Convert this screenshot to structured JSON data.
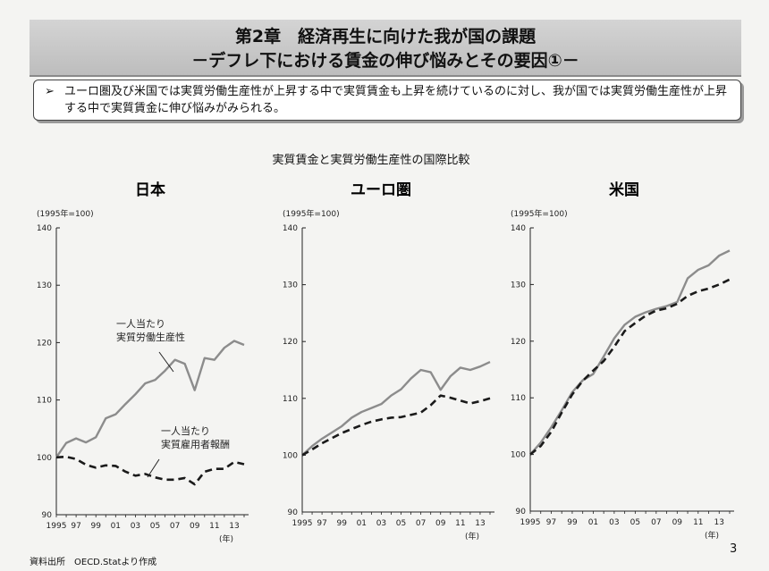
{
  "header": {
    "title_line1": "第2章　経済再生に向けた我が国の課題",
    "title_line2": "－デフレ下における賃金の伸び悩みとその要因①－"
  },
  "summary": {
    "bullet": "➢",
    "text": "ユーロ圏及び米国では実質労働生産性が上昇する中で実質賃金も上昇を続けているのに対し、我が国では実質労働生産性が上昇する中で実質賃金に伸び悩みがみられる。"
  },
  "chart_title": "実質賃金と実質労働生産性の国際比較",
  "chart_data": [
    {
      "type": "line",
      "title": "日本",
      "unit_label": "(1995年=100)",
      "xlabel": "(年)",
      "x": [
        1995,
        1996,
        1997,
        1998,
        1999,
        2000,
        2001,
        2002,
        2003,
        2004,
        2005,
        2006,
        2007,
        2008,
        2009,
        2010,
        2011,
        2012,
        2013,
        2014
      ],
      "ylim": [
        90,
        140
      ],
      "yticks": [
        90,
        100,
        110,
        120,
        130,
        140
      ],
      "xtick_labels": [
        "1995",
        "97",
        "99",
        "01",
        "03",
        "05",
        "07",
        "09",
        "11",
        "13"
      ],
      "series": [
        {
          "name": "一人当たり実質労働生産性",
          "style": "solid",
          "color": "#8c8c8c",
          "values": [
            100,
            102.5,
            103.3,
            102.6,
            103.5,
            106.8,
            107.5,
            109.3,
            111.0,
            112.9,
            113.5,
            115.1,
            117.0,
            116.3,
            111.7,
            117.3,
            117.0,
            119.1,
            120.3,
            119.6
          ]
        },
        {
          "name": "一人当たり実質雇用者報酬",
          "style": "dashed",
          "color": "#1a1a1a",
          "values": [
            100,
            100.1,
            99.7,
            98.7,
            98.2,
            98.6,
            98.5,
            97.5,
            96.8,
            97.1,
            96.5,
            96.1,
            96.1,
            96.4,
            95.3,
            97.5,
            98.0,
            98.0,
            99.2,
            98.8
          ]
        }
      ],
      "annotations": [
        {
          "lines": [
            "一人当たり",
            "実質労働生産性"
          ]
        },
        {
          "lines": [
            "一人当たり",
            "実質雇用者報酬"
          ]
        }
      ]
    },
    {
      "type": "line",
      "title": "ユーロ圏",
      "unit_label": "(1995年=100)",
      "xlabel": "(年)",
      "x": [
        1995,
        1996,
        1997,
        1998,
        1999,
        2000,
        2001,
        2002,
        2003,
        2004,
        2005,
        2006,
        2007,
        2008,
        2009,
        2010,
        2011,
        2012,
        2013,
        2014
      ],
      "ylim": [
        90,
        140
      ],
      "yticks": [
        90,
        100,
        110,
        120,
        130,
        140
      ],
      "xtick_labels": [
        "1995",
        "97",
        "99",
        "01",
        "03",
        "05",
        "07",
        "09",
        "11",
        "13"
      ],
      "series": [
        {
          "style": "solid",
          "color": "#8c8c8c",
          "values": [
            100,
            101.6,
            102.9,
            104.0,
            105.1,
            106.6,
            107.6,
            108.3,
            109.0,
            110.5,
            111.6,
            113.5,
            115.0,
            114.6,
            111.5,
            113.9,
            115.4,
            115.0,
            115.6,
            116.4
          ]
        },
        {
          "style": "dashed",
          "color": "#1a1a1a",
          "values": [
            100,
            101.0,
            102.1,
            103.0,
            103.9,
            104.6,
            105.3,
            105.9,
            106.3,
            106.6,
            106.7,
            107.1,
            107.5,
            108.8,
            110.5,
            110.1,
            109.6,
            109.1,
            109.5,
            110.0
          ]
        }
      ]
    },
    {
      "type": "line",
      "title": "米国",
      "unit_label": "(1995年=100)",
      "xlabel": "(年)",
      "x": [
        1995,
        1996,
        1997,
        1998,
        1999,
        2000,
        2001,
        2002,
        2003,
        2004,
        2005,
        2006,
        2007,
        2008,
        2009,
        2010,
        2011,
        2012,
        2013,
        2014
      ],
      "ylim": [
        90,
        140
      ],
      "yticks": [
        90,
        100,
        110,
        120,
        130,
        140
      ],
      "xtick_labels": [
        "1995",
        "97",
        "99",
        "01",
        "03",
        "05",
        "07",
        "09",
        "11",
        "13"
      ],
      "series": [
        {
          "style": "solid",
          "color": "#8c8c8c",
          "values": [
            100,
            102.1,
            104.8,
            107.8,
            111.0,
            113.1,
            114.2,
            117.3,
            120.5,
            122.9,
            124.3,
            125.1,
            125.7,
            126.2,
            126.9,
            131.1,
            132.6,
            133.4,
            135.1,
            136.0
          ]
        },
        {
          "style": "dashed",
          "color": "#1a1a1a",
          "values": [
            100,
            101.5,
            104.0,
            107.4,
            110.6,
            113.0,
            114.8,
            116.5,
            119.0,
            121.8,
            123.2,
            124.5,
            125.4,
            125.8,
            126.6,
            128.0,
            128.8,
            129.3,
            130.0,
            130.9
          ]
        }
      ]
    }
  ],
  "source": "資料出所　OECD.Statより作成",
  "page_number": "3"
}
